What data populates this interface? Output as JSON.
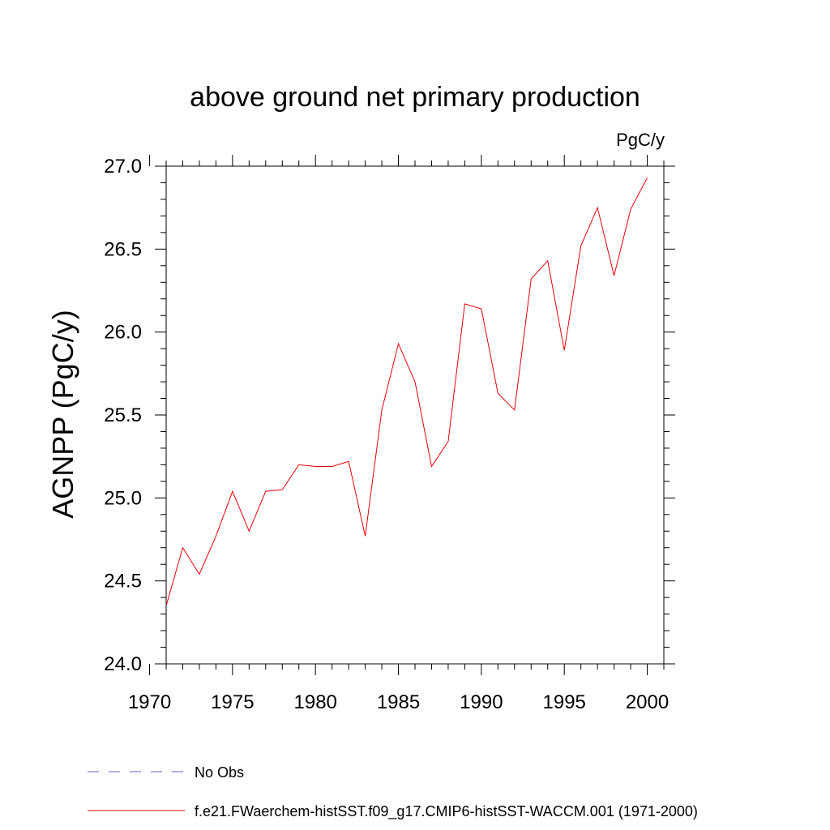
{
  "chart_data": {
    "type": "line",
    "title": "above ground net primary production",
    "units_label": "PgC/y",
    "xlabel": "",
    "ylabel": "AGNPP  (PgC/y)",
    "xlim": [
      1971,
      2001
    ],
    "ylim": [
      24.0,
      27.0
    ],
    "x_ticks": [
      1970,
      1975,
      1980,
      1985,
      1990,
      1995,
      2000
    ],
    "y_ticks": [
      "24.0",
      "24.5",
      "25.0",
      "25.5",
      "26.0",
      "26.5",
      "27.0"
    ],
    "grid": false,
    "legend_position": "bottom-left",
    "series": [
      {
        "name": "No Obs",
        "color": "#6a5acd",
        "style": "dashed",
        "x": [],
        "values": []
      },
      {
        "name": "f.e21.FWaerchem-histSST.f09_g17.CMIP6-histSST-WACCM.001 (1971-2000)",
        "color": "#e8000b",
        "style": "solid",
        "x": [
          1971,
          1972,
          1973,
          1974,
          1975,
          1976,
          1977,
          1978,
          1979,
          1980,
          1981,
          1982,
          1983,
          1984,
          1985,
          1986,
          1987,
          1988,
          1989,
          1990,
          1991,
          1992,
          1993,
          1994,
          1995,
          1996,
          1997,
          1998,
          1999,
          2000
        ],
        "values": [
          24.35,
          24.7,
          24.54,
          24.77,
          25.04,
          24.8,
          25.04,
          25.05,
          25.2,
          25.19,
          25.19,
          25.22,
          24.77,
          25.53,
          25.93,
          25.7,
          25.19,
          25.34,
          26.17,
          26.14,
          25.63,
          25.53,
          26.32,
          26.43,
          25.89,
          26.52,
          26.75,
          26.34,
          26.74,
          26.93
        ]
      }
    ]
  }
}
